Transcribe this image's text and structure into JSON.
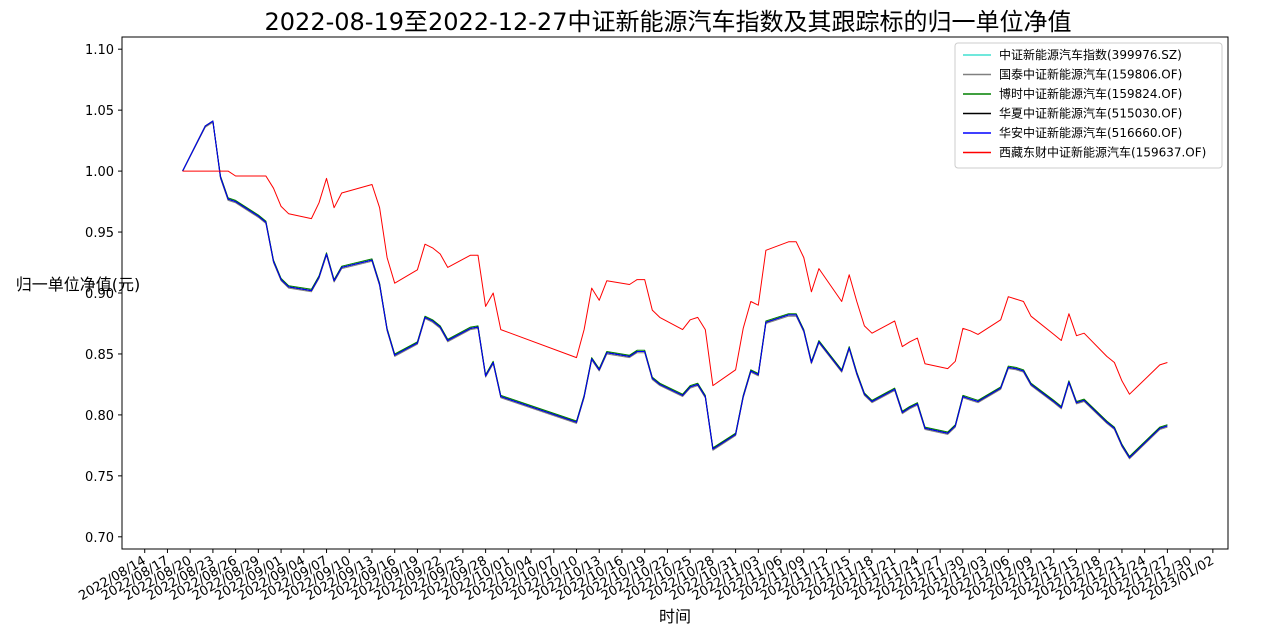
{
  "chart_data": {
    "type": "line",
    "title": "2022-08-19至2022-12-27中证新能源汽车指数及其跟踪标的归一单位净值",
    "xlabel": "时间",
    "ylabel": "归一单位净值(元)",
    "ylim": [
      0.69,
      1.11
    ],
    "xlim": [
      "2022-08-11",
      "2023-01-04"
    ],
    "grid": false,
    "legend_position": "top-right",
    "ytick_labels": [
      "0.70",
      "0.75",
      "0.80",
      "0.85",
      "0.90",
      "0.95",
      "1.00",
      "1.05",
      "1.10"
    ],
    "yticks": [
      0.7,
      0.75,
      0.8,
      0.85,
      0.9,
      0.95,
      1.0,
      1.05,
      1.1
    ],
    "xtick_labels": [
      "2022/08/14",
      "2022/08/17",
      "2022/08/20",
      "2022/08/23",
      "2022/08/26",
      "2022/08/29",
      "2022/09/01",
      "2022/09/04",
      "2022/09/07",
      "2022/09/10",
      "2022/09/13",
      "2022/09/16",
      "2022/09/19",
      "2022/09/22",
      "2022/09/25",
      "2022/09/28",
      "2022/10/01",
      "2022/10/04",
      "2022/10/07",
      "2022/10/10",
      "2022/10/13",
      "2022/10/16",
      "2022/10/19",
      "2022/10/22",
      "2022/10/25",
      "2022/10/28",
      "2022/10/31",
      "2022/11/03",
      "2022/11/06",
      "2022/11/09",
      "2022/11/12",
      "2022/11/15",
      "2022/11/18",
      "2022/11/21",
      "2022/11/24",
      "2022/11/27",
      "2022/11/30",
      "2022/12/03",
      "2022/12/06",
      "2022/12/09",
      "2022/12/12",
      "2022/12/15",
      "2022/12/18",
      "2022/12/21",
      "2022/12/24",
      "2022/12/27",
      "2022/12/30",
      "2023/01/02"
    ],
    "dates": [
      "2022-08-19",
      "2022-08-22",
      "2022-08-23",
      "2022-08-24",
      "2022-08-25",
      "2022-08-26",
      "2022-08-29",
      "2022-08-30",
      "2022-08-31",
      "2022-09-01",
      "2022-09-02",
      "2022-09-05",
      "2022-09-06",
      "2022-09-07",
      "2022-09-08",
      "2022-09-09",
      "2022-09-13",
      "2022-09-14",
      "2022-09-15",
      "2022-09-16",
      "2022-09-19",
      "2022-09-20",
      "2022-09-21",
      "2022-09-22",
      "2022-09-23",
      "2022-09-26",
      "2022-09-27",
      "2022-09-28",
      "2022-09-29",
      "2022-09-30",
      "2022-10-10",
      "2022-10-11",
      "2022-10-12",
      "2022-10-13",
      "2022-10-14",
      "2022-10-17",
      "2022-10-18",
      "2022-10-19",
      "2022-10-20",
      "2022-10-21",
      "2022-10-24",
      "2022-10-25",
      "2022-10-26",
      "2022-10-27",
      "2022-10-28",
      "2022-10-31",
      "2022-11-01",
      "2022-11-02",
      "2022-11-03",
      "2022-11-04",
      "2022-11-07",
      "2022-11-08",
      "2022-11-09",
      "2022-11-10",
      "2022-11-11",
      "2022-11-14",
      "2022-11-15",
      "2022-11-16",
      "2022-11-17",
      "2022-11-18",
      "2022-11-21",
      "2022-11-22",
      "2022-11-23",
      "2022-11-24",
      "2022-11-25",
      "2022-11-28",
      "2022-11-29",
      "2022-11-30",
      "2022-12-01",
      "2022-12-02",
      "2022-12-05",
      "2022-12-06",
      "2022-12-07",
      "2022-12-08",
      "2022-12-09",
      "2022-12-12",
      "2022-12-13",
      "2022-12-14",
      "2022-12-15",
      "2022-12-16",
      "2022-12-19",
      "2022-12-20",
      "2022-12-21",
      "2022-12-22",
      "2022-12-23",
      "2022-12-26",
      "2022-12-27"
    ],
    "series": [
      {
        "name": "中证新能源汽车指数(399976.SZ)",
        "color": "#40e0d0",
        "width": 1.0,
        "values": [
          1.0,
          1.037,
          1.041,
          0.995,
          0.977,
          0.975,
          0.963,
          0.958,
          0.926,
          0.911,
          0.905,
          0.902,
          0.913,
          0.932,
          0.91,
          0.921,
          0.927,
          0.907,
          0.87,
          0.849,
          0.859,
          0.88,
          0.877,
          0.872,
          0.861,
          0.871,
          0.872,
          0.832,
          0.843,
          0.815,
          0.794,
          0.815,
          0.846,
          0.837,
          0.851,
          0.848,
          0.852,
          0.852,
          0.83,
          0.825,
          0.816,
          0.823,
          0.825,
          0.815,
          0.772,
          0.784,
          0.815,
          0.836,
          0.833,
          0.876,
          0.882,
          0.882,
          0.869,
          0.843,
          0.86,
          0.836,
          0.855,
          0.834,
          0.817,
          0.811,
          0.821,
          0.802,
          0.806,
          0.809,
          0.789,
          0.785,
          0.791,
          0.815,
          0.813,
          0.811,
          0.822,
          0.839,
          0.838,
          0.836,
          0.825,
          0.811,
          0.806,
          0.827,
          0.81,
          0.812,
          0.794,
          0.789,
          0.775,
          0.765,
          0.771,
          0.789,
          0.791
        ]
      },
      {
        "name": "国泰中证新能源汽车(159806.OF)",
        "color": "#808080",
        "width": 1.0,
        "values": [
          1.0,
          1.036,
          1.04,
          0.994,
          0.976,
          0.974,
          0.962,
          0.957,
          0.925,
          0.91,
          0.904,
          0.901,
          0.912,
          0.931,
          0.909,
          0.92,
          0.926,
          0.906,
          0.869,
          0.848,
          0.858,
          0.879,
          0.876,
          0.871,
          0.86,
          0.87,
          0.871,
          0.831,
          0.842,
          0.814,
          0.793,
          0.814,
          0.845,
          0.836,
          0.85,
          0.847,
          0.851,
          0.851,
          0.829,
          0.824,
          0.815,
          0.822,
          0.824,
          0.814,
          0.771,
          0.783,
          0.814,
          0.835,
          0.832,
          0.875,
          0.881,
          0.881,
          0.868,
          0.842,
          0.859,
          0.835,
          0.854,
          0.833,
          0.816,
          0.81,
          0.82,
          0.801,
          0.805,
          0.808,
          0.788,
          0.784,
          0.79,
          0.814,
          0.812,
          0.81,
          0.821,
          0.838,
          0.837,
          0.835,
          0.824,
          0.81,
          0.805,
          0.826,
          0.809,
          0.811,
          0.793,
          0.788,
          0.774,
          0.764,
          0.77,
          0.788,
          0.79
        ]
      },
      {
        "name": "博时中证新能源汽车(159824.OF)",
        "color": "#008000",
        "width": 1.0,
        "values": [
          1.0,
          1.037,
          1.041,
          0.996,
          0.978,
          0.976,
          0.964,
          0.959,
          0.927,
          0.912,
          0.906,
          0.903,
          0.914,
          0.933,
          0.911,
          0.922,
          0.928,
          0.908,
          0.871,
          0.85,
          0.86,
          0.881,
          0.878,
          0.873,
          0.862,
          0.872,
          0.873,
          0.833,
          0.844,
          0.816,
          0.795,
          0.816,
          0.847,
          0.838,
          0.852,
          0.849,
          0.853,
          0.853,
          0.831,
          0.826,
          0.817,
          0.824,
          0.826,
          0.816,
          0.773,
          0.785,
          0.816,
          0.837,
          0.834,
          0.877,
          0.883,
          0.883,
          0.87,
          0.844,
          0.861,
          0.837,
          0.856,
          0.835,
          0.818,
          0.812,
          0.822,
          0.803,
          0.807,
          0.81,
          0.79,
          0.786,
          0.792,
          0.816,
          0.814,
          0.812,
          0.823,
          0.84,
          0.839,
          0.837,
          0.826,
          0.812,
          0.807,
          0.828,
          0.811,
          0.813,
          0.795,
          0.79,
          0.776,
          0.766,
          0.772,
          0.79,
          0.792
        ]
      },
      {
        "name": "华夏中证新能源汽车(515030.OF)",
        "color": "#000000",
        "width": 1.1,
        "values": [
          1.0,
          1.037,
          1.041,
          0.995,
          0.977,
          0.975,
          0.963,
          0.958,
          0.926,
          0.911,
          0.905,
          0.902,
          0.913,
          0.932,
          0.91,
          0.921,
          0.927,
          0.907,
          0.87,
          0.849,
          0.859,
          0.88,
          0.877,
          0.872,
          0.861,
          0.871,
          0.872,
          0.832,
          0.843,
          0.815,
          0.794,
          0.815,
          0.846,
          0.837,
          0.851,
          0.848,
          0.852,
          0.852,
          0.83,
          0.825,
          0.816,
          0.823,
          0.825,
          0.815,
          0.772,
          0.784,
          0.815,
          0.836,
          0.833,
          0.876,
          0.882,
          0.882,
          0.869,
          0.843,
          0.86,
          0.836,
          0.855,
          0.834,
          0.817,
          0.811,
          0.821,
          0.802,
          0.806,
          0.809,
          0.789,
          0.785,
          0.791,
          0.815,
          0.813,
          0.811,
          0.822,
          0.839,
          0.838,
          0.836,
          0.825,
          0.811,
          0.806,
          0.827,
          0.81,
          0.812,
          0.794,
          0.789,
          0.775,
          0.765,
          0.771,
          0.789,
          0.791
        ]
      },
      {
        "name": "华安中证新能源汽车(516660.OF)",
        "color": "#0000ff",
        "width": 1.0,
        "values": [
          1.0,
          1.037,
          1.041,
          0.995,
          0.977,
          0.975,
          0.963,
          0.958,
          0.926,
          0.911,
          0.905,
          0.902,
          0.913,
          0.932,
          0.91,
          0.921,
          0.927,
          0.907,
          0.87,
          0.849,
          0.859,
          0.88,
          0.877,
          0.872,
          0.861,
          0.871,
          0.872,
          0.832,
          0.843,
          0.815,
          0.794,
          0.815,
          0.846,
          0.837,
          0.851,
          0.848,
          0.852,
          0.852,
          0.83,
          0.825,
          0.816,
          0.823,
          0.825,
          0.815,
          0.772,
          0.784,
          0.815,
          0.836,
          0.833,
          0.876,
          0.882,
          0.882,
          0.869,
          0.843,
          0.86,
          0.836,
          0.855,
          0.834,
          0.817,
          0.811,
          0.821,
          0.802,
          0.806,
          0.809,
          0.789,
          0.785,
          0.791,
          0.815,
          0.813,
          0.811,
          0.822,
          0.839,
          0.838,
          0.836,
          0.825,
          0.811,
          0.806,
          0.827,
          0.81,
          0.812,
          0.794,
          0.789,
          0.775,
          0.765,
          0.771,
          0.789,
          0.791
        ]
      },
      {
        "name": "西藏东财中证新能源汽车(159637.OF)",
        "color": "#ff0000",
        "width": 1.0,
        "values": [
          1.0,
          1.0,
          1.0,
          1.0,
          1.0,
          0.996,
          0.996,
          0.996,
          0.986,
          0.971,
          0.965,
          0.961,
          0.974,
          0.994,
          0.97,
          0.982,
          0.989,
          0.97,
          0.929,
          0.908,
          0.919,
          0.94,
          0.937,
          0.932,
          0.921,
          0.931,
          0.931,
          0.889,
          0.9,
          0.87,
          0.847,
          0.87,
          0.904,
          0.894,
          0.91,
          0.907,
          0.911,
          0.911,
          0.886,
          0.88,
          0.87,
          0.878,
          0.88,
          0.87,
          0.824,
          0.837,
          0.871,
          0.893,
          0.89,
          0.935,
          0.942,
          0.942,
          0.929,
          0.901,
          0.92,
          0.893,
          0.915,
          0.893,
          0.873,
          0.867,
          0.877,
          0.856,
          0.86,
          0.863,
          0.842,
          0.838,
          0.844,
          0.871,
          0.869,
          0.866,
          0.878,
          0.897,
          0.895,
          0.893,
          0.881,
          0.866,
          0.861,
          0.883,
          0.865,
          0.867,
          0.848,
          0.843,
          0.828,
          0.817,
          0.823,
          0.841,
          0.843
        ]
      }
    ]
  }
}
